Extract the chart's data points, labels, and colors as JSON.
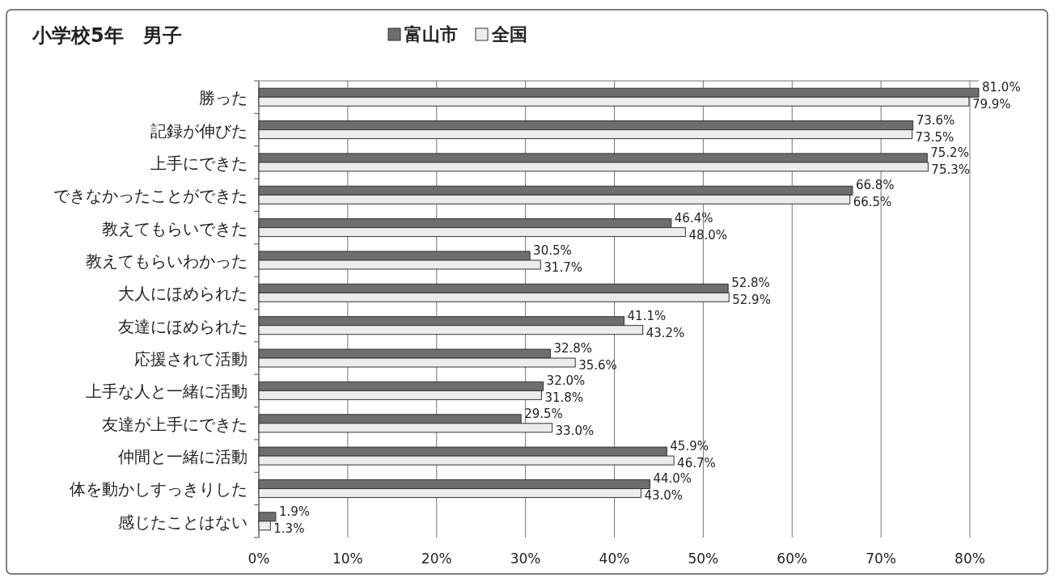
{
  "chart_data": {
    "type": "bar",
    "orientation": "horizontal",
    "title": "小学校5年　男子",
    "categories": [
      "勝った",
      "記録が伸びた",
      "上手にできた",
      "できなかったことができた",
      "教えてもらいできた",
      "教えてもらいわかった",
      "大人にほめられた",
      "友達にほめられた",
      "応援されて活動",
      "上手な人と一緒に活動",
      "友達が上手にできた",
      "仲間と一緒に活動",
      "体を動かしすっきりした",
      "感じたことはない"
    ],
    "series": [
      {
        "name": "富山市",
        "color": "#6e6e6e",
        "values": [
          81.0,
          73.6,
          75.2,
          66.8,
          46.4,
          30.5,
          52.8,
          41.1,
          32.8,
          32.0,
          29.5,
          45.9,
          44.0,
          1.9
        ],
        "value_labels": [
          "81.0%",
          "73.6%",
          "75.2%",
          "66.8%",
          "46.4%",
          "30.5%",
          "52.8%",
          "41.1%",
          "32.8%",
          "32.0%",
          "29.5%",
          "45.9%",
          "44.0%",
          "1.9%"
        ]
      },
      {
        "name": "全国",
        "color": "#ececec",
        "values": [
          79.9,
          73.5,
          75.3,
          66.5,
          48.0,
          31.7,
          52.9,
          43.2,
          35.6,
          31.8,
          33.0,
          46.7,
          43.0,
          1.3
        ],
        "value_labels": [
          "79.9%",
          "73.5%",
          "75.3%",
          "66.5%",
          "48.0%",
          "31.7%",
          "52.9%",
          "43.2%",
          "35.6%",
          "31.8%",
          "33.0%",
          "46.7%",
          "43.0%",
          "1.3%"
        ]
      }
    ],
    "xlim": [
      0,
      81
    ],
    "xticks": [
      {
        "value": 0,
        "label": "0%"
      },
      {
        "value": 10,
        "label": "10%"
      },
      {
        "value": 20,
        "label": "20%"
      },
      {
        "value": 30,
        "label": "30%"
      },
      {
        "value": 40,
        "label": "40%"
      },
      {
        "value": 50,
        "label": "50%"
      },
      {
        "value": 60,
        "label": "60%"
      },
      {
        "value": 70,
        "label": "70%"
      },
      {
        "value": 80,
        "label": "80%"
      }
    ],
    "grid": "x",
    "legend": "top"
  }
}
